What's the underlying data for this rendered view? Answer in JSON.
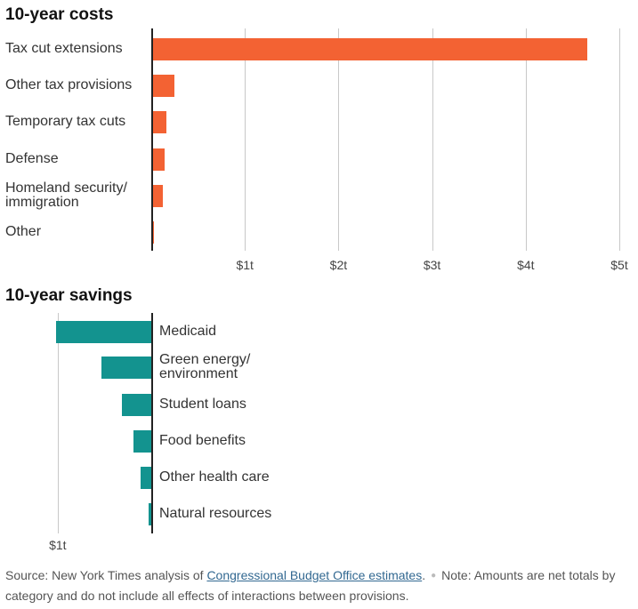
{
  "colors": {
    "cost": "#f36233",
    "savings": "#13938f"
  },
  "chart_data": [
    {
      "type": "bar",
      "orientation": "horizontal",
      "title": "10-year costs",
      "unit": "trillion dollars",
      "xlim": [
        0,
        5
      ],
      "ticks": [
        {
          "value": 1,
          "label": "$1t"
        },
        {
          "value": 2,
          "label": "$2t"
        },
        {
          "value": 3,
          "label": "$3t"
        },
        {
          "value": 4,
          "label": "$4t"
        },
        {
          "value": 5,
          "label": "$5t"
        }
      ],
      "categories": [
        "Tax cut extensions",
        "Other tax provisions",
        "Temporary tax cuts",
        "Defense",
        "Homeland security/\nimmigration",
        "Other"
      ],
      "values": [
        4.66,
        0.25,
        0.16,
        0.14,
        0.12,
        0.03
      ]
    },
    {
      "type": "bar",
      "orientation": "horizontal",
      "direction": "negative",
      "title": "10-year savings",
      "unit": "trillion dollars",
      "xlim": [
        0,
        1
      ],
      "ticks": [
        {
          "value": 1,
          "label": "$1t"
        }
      ],
      "categories": [
        "Medicaid",
        "Green energy/\nenvironment",
        "Student loans",
        "Food benefits",
        "Other health care",
        "Natural resources"
      ],
      "values": [
        1.02,
        0.53,
        0.31,
        0.19,
        0.11,
        0.03
      ]
    }
  ],
  "footer": {
    "source_prefix": "Source: New York Times analysis of ",
    "source_link": "Congressional Budget Office estimates",
    "source_suffix": ".",
    "note": "Note: Amounts are net totals by category and do not include all effects of interactions between provisions."
  }
}
